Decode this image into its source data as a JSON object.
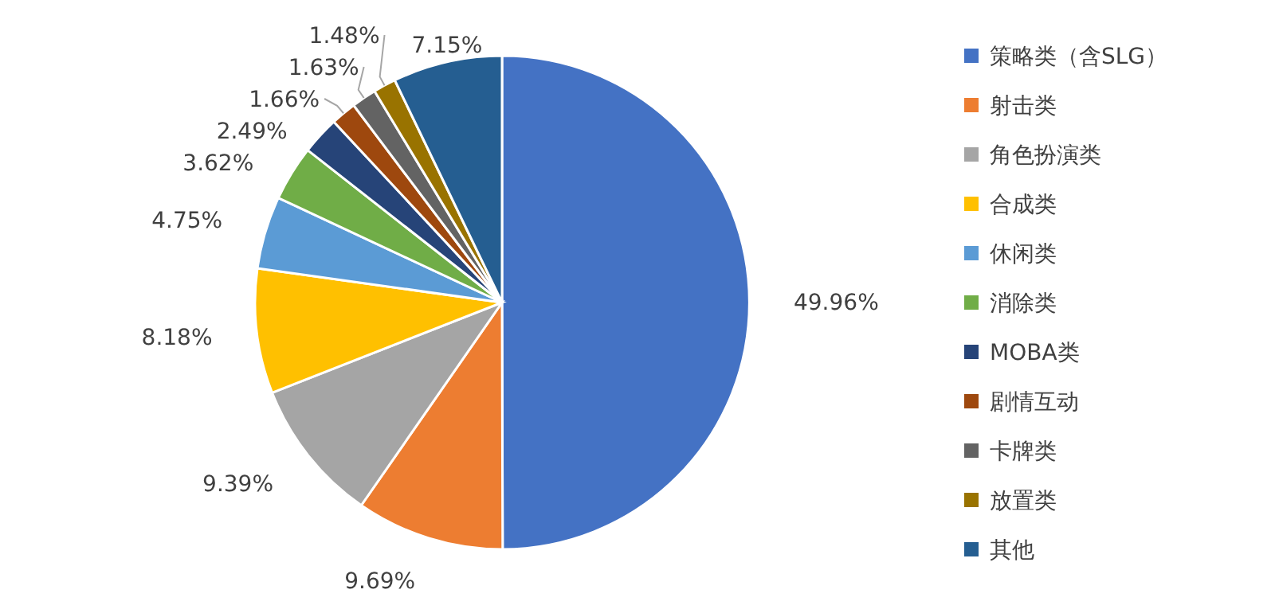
{
  "chart_data": {
    "type": "pie",
    "categories": [
      "策略类（含SLG）",
      "射击类",
      "角色扮演类",
      "合成类",
      "休闲类",
      "消除类",
      "MOBA类",
      "剧情互动",
      "卡牌类",
      "放置类",
      "其他"
    ],
    "values": [
      49.96,
      9.69,
      9.39,
      8.18,
      4.75,
      3.62,
      2.49,
      1.66,
      1.63,
      1.48,
      7.15
    ],
    "colors": [
      "#4472c4",
      "#ed7d31",
      "#a5a5a5",
      "#ffc000",
      "#5b9bd5",
      "#70ad47",
      "#264478",
      "#9e480e",
      "#636363",
      "#997300",
      "#255e91"
    ],
    "value_labels": [
      "49.96%",
      "9.69%",
      "9.39%",
      "8.18%",
      "4.75%",
      "3.62%",
      "2.49%",
      "1.66%",
      "1.63%",
      "1.48%",
      "7.15%"
    ],
    "legend": "right"
  }
}
